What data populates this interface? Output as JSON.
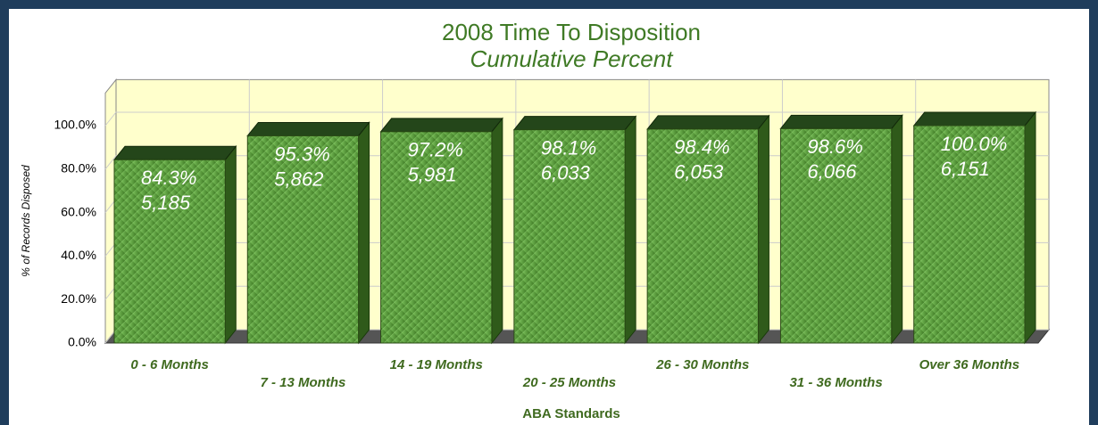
{
  "chart_data": {
    "type": "bar",
    "title": "2008 Time To Disposition",
    "subtitle": "Cumulative Percent",
    "x_label": "ABA Standards",
    "y_label": "% of Records Disposed",
    "categories": [
      "0 - 6 Months",
      "7 - 13 Months",
      "14 - 19 Months",
      "20 - 25 Months",
      "26 - 30 Months",
      "31 - 36 Months",
      "Over 36 Months"
    ],
    "values": [
      84.3,
      95.3,
      97.2,
      98.1,
      98.4,
      98.6,
      100.0
    ],
    "value_labels": [
      "84.3%",
      "95.3%",
      "97.2%",
      "98.1%",
      "98.4%",
      "98.6%",
      "100.0%"
    ],
    "counts": [
      5185,
      5862,
      5981,
      6033,
      6053,
      6066,
      6151
    ],
    "count_labels": [
      "5,185",
      "5,862",
      "5,981",
      "6,033",
      "6,053",
      "6,066",
      "6,151"
    ],
    "color": "#5a9a3a",
    "ylim": [
      0,
      115
    ],
    "yticks": [
      {
        "value": 0,
        "label": "0.0%"
      },
      {
        "value": 20,
        "label": "20.0%"
      },
      {
        "value": 40,
        "label": "40.0%"
      },
      {
        "value": 60,
        "label": "60.0%"
      },
      {
        "value": 80,
        "label": "80.0%"
      },
      {
        "value": 100,
        "label": "100.0%"
      }
    ],
    "grid": true
  }
}
